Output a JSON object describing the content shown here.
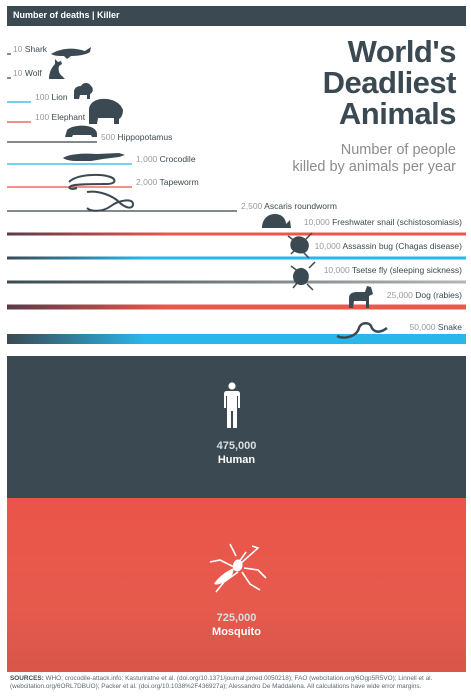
{
  "header": {
    "label": "Number of deaths | Killer"
  },
  "title": {
    "line1": "World's",
    "line2": "Deadliest",
    "line3": "Animals"
  },
  "subtitle": {
    "line1": "Number of people",
    "line2": "killed by animals per year"
  },
  "chart_data": {
    "type": "bar",
    "title": "World's Deadliest Animals",
    "subtitle": "Number of people killed by animals per year",
    "xlabel": "Number of deaths",
    "ylabel": "Killer",
    "categories": [
      "Shark",
      "Wolf",
      "Lion",
      "Elephant",
      "Hippopotamus",
      "Crocodile",
      "Tapeworm",
      "Ascaris roundworm",
      "Freshwater snail (schistosomiasis)",
      "Assassin bug (Chagas disease)",
      "Tsetse fly (sleeping sickness)",
      "Dog (rabies)",
      "Snake",
      "Human",
      "Mosquito"
    ],
    "values": [
      10,
      10,
      100,
      100,
      500,
      1000,
      2000,
      2500,
      10000,
      10000,
      10000,
      25000,
      50000,
      475000,
      725000
    ],
    "value_labels": [
      "10",
      "10",
      "100",
      "100",
      "500",
      "1,000",
      "2,000",
      "2,500",
      "10,000",
      "10,000",
      "10,000",
      "25,000",
      "50,000",
      "475,000",
      "725,000"
    ],
    "colors": {
      "Shark": "#3b4a52",
      "Wolf": "#3b4a52",
      "Lion": "#29b6e8",
      "Elephant": "#e8584b",
      "Hippopotamus": "#3b4a52",
      "Crocodile": "#29b6e8",
      "Tapeworm": "#e8584b",
      "Ascaris roundworm": "#3b4a52",
      "Freshwater snail (schistosomiasis)": "#e8584b",
      "Assassin bug (Chagas disease)": "#29b6e8",
      "Tsetse fly (sleeping sickness)": "#8a8a8a",
      "Dog (rabies)": "#e8584b",
      "Snake": "#29b6e8",
      "Human": "#3b4a52",
      "Mosquito": "#e8584b"
    },
    "icons": [
      "shark-icon",
      "wolf-icon",
      "lion-icon",
      "elephant-icon",
      "hippo-icon",
      "crocodile-icon",
      "tapeworm-icon",
      "roundworm-icon",
      "snail-icon",
      "bug-icon",
      "fly-icon",
      "dog-icon",
      "snake-icon",
      "human-icon",
      "mosquito-icon"
    ]
  },
  "human": {
    "value": "475,000",
    "name": "Human"
  },
  "mosquito": {
    "value": "725,000",
    "name": "Mosquito"
  },
  "sources": {
    "label": "SOURCES:",
    "text": "WHO; crocodile-attack.info; Kasturiratne et al. (doi.org/10.1371/journal.pmed.0050218); FAO (webcitation.org/6Ogp5R5VO); Linnell et al. (webcitation.org/6ORL7DBUO); Packer et al. (doi.org/10.1038%2F436927a); Alessandro De Maddalena. All calculations have wide error margins."
  }
}
